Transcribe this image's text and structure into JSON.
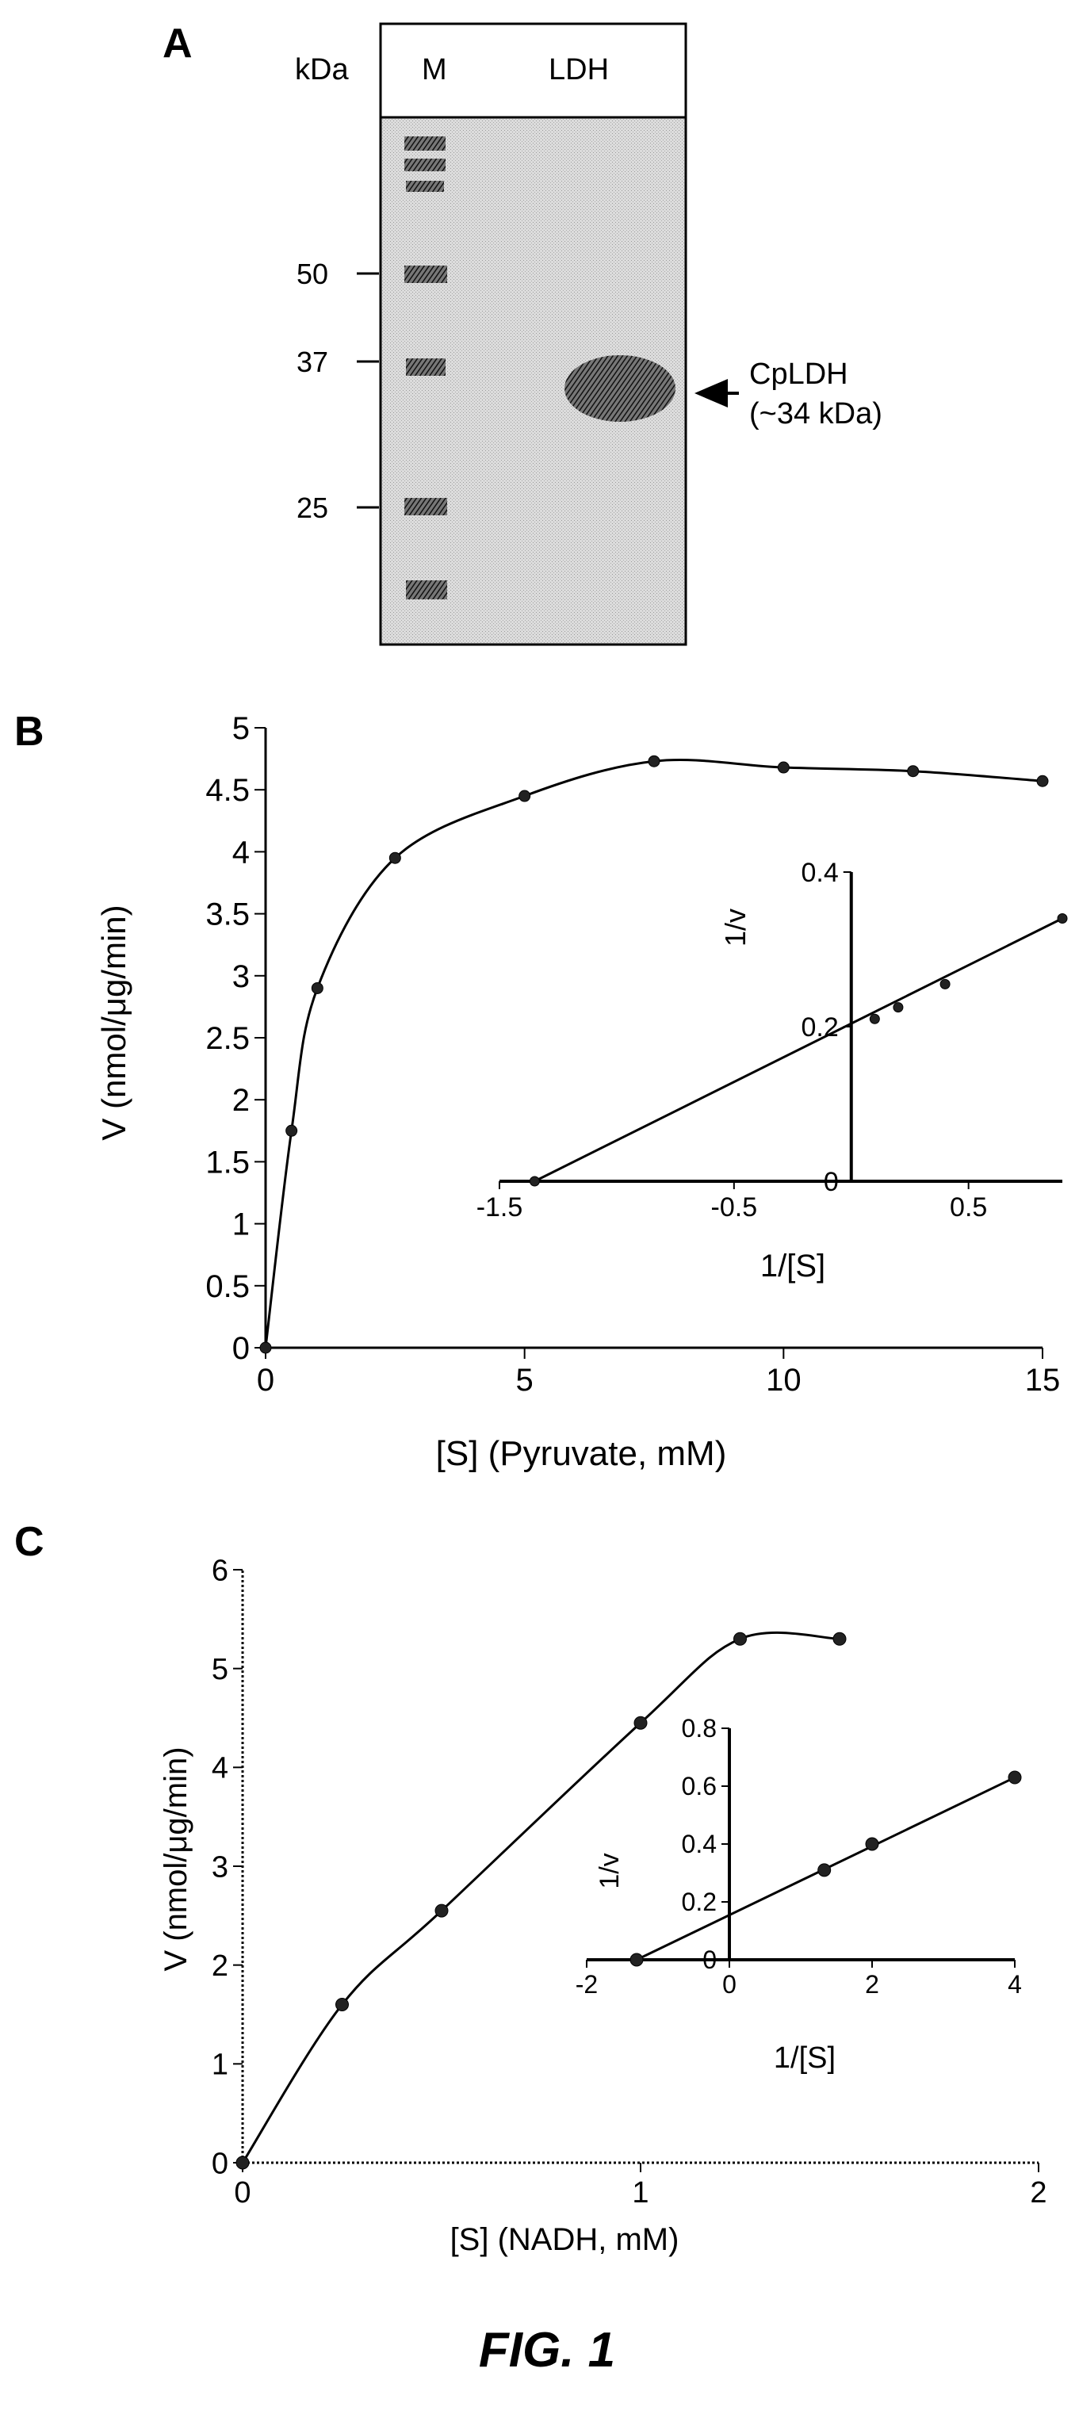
{
  "panelA": {
    "label": "A",
    "kda_label": "kDa",
    "lane_labels": [
      "M",
      "LDH"
    ],
    "markers": [
      "50",
      "37",
      "25"
    ],
    "band_label_1": "CpLDH",
    "band_label_2": "(~34 kDa)"
  },
  "chart_data": [
    {
      "type": "line",
      "panel": "B",
      "xlabel": "[S] (Pyruvate, mM)",
      "ylabel": "V (nmol/μg/min)",
      "xlim": [
        0,
        15
      ],
      "ylim": [
        0,
        5
      ],
      "xticks": [
        "0",
        "5",
        "10",
        "15"
      ],
      "yticks": [
        "0",
        "0.5",
        "1",
        "1.5",
        "2",
        "2.5",
        "3",
        "3.5",
        "4",
        "4.5",
        "5"
      ],
      "x": [
        0,
        0.5,
        1,
        2.5,
        5,
        7.5,
        10,
        12.5,
        15
      ],
      "values": [
        0,
        1.75,
        2.9,
        3.95,
        4.45,
        4.73,
        4.68,
        4.65,
        4.57
      ],
      "inset": {
        "type": "line",
        "xlabel": "1/[S]",
        "ylabel": "1/v",
        "xlim": [
          -1.5,
          0.9
        ],
        "ylim": [
          0,
          0.4
        ],
        "xticks": [
          "-1.5",
          "-0.5",
          "0.5"
        ],
        "yticks": [
          "0",
          "0.2",
          "0.4"
        ],
        "x": [
          -1.35,
          0.1,
          0.2,
          0.4,
          0.9
        ],
        "values": [
          0,
          0.21,
          0.225,
          0.255,
          0.34
        ]
      }
    },
    {
      "type": "line",
      "panel": "C",
      "xlabel": "[S] (NADH, mM)",
      "ylabel": "V (nmol/μg/min)",
      "xlim": [
        0,
        2
      ],
      "ylim": [
        0,
        6
      ],
      "xticks": [
        "0",
        "1",
        "2"
      ],
      "yticks": [
        "0",
        "1",
        "2",
        "3",
        "4",
        "5",
        "6"
      ],
      "x": [
        0,
        0.25,
        0.5,
        1,
        1.25,
        1.5
      ],
      "values": [
        0,
        1.6,
        2.55,
        4.45,
        5.3,
        5.3
      ],
      "inset": {
        "type": "line",
        "xlabel": "1/[S]",
        "ylabel": "1/v",
        "xlim": [
          -2,
          4
        ],
        "ylim": [
          0,
          0.8
        ],
        "xticks": [
          "-2",
          "0",
          "2",
          "4"
        ],
        "yticks": [
          "0",
          "0.2",
          "0.4",
          "0.6",
          "0.8"
        ],
        "x": [
          -1.3,
          1.33,
          2,
          4
        ],
        "values": [
          0,
          0.31,
          0.4,
          0.63
        ]
      }
    }
  ],
  "caption": "FIG. 1"
}
